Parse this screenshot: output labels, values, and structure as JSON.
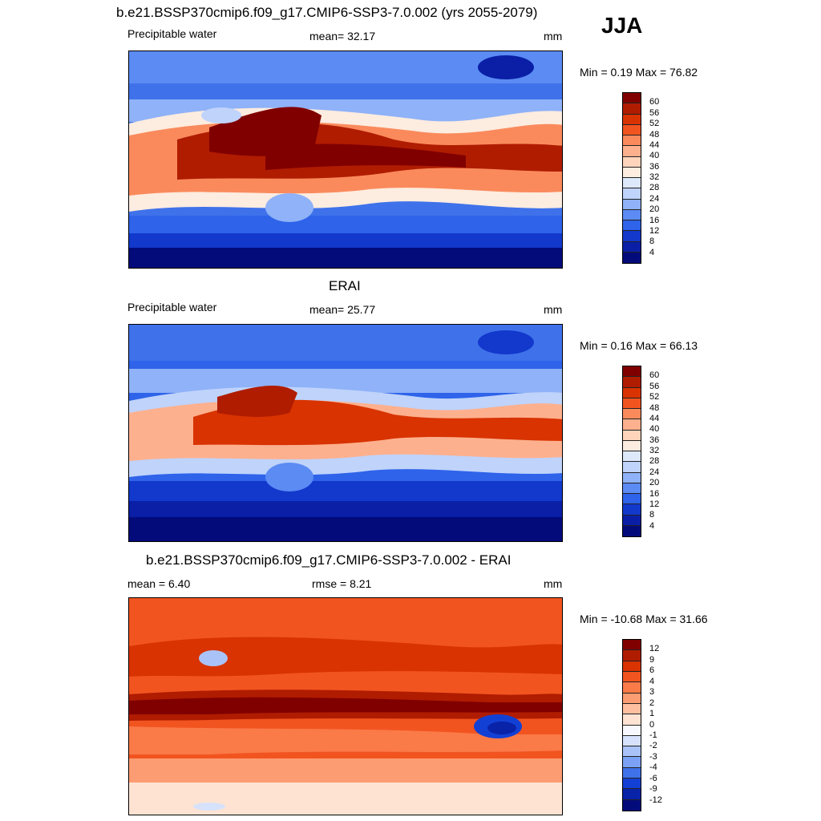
{
  "season": "JJA",
  "panels": [
    {
      "title": "b.e21.BSSP370cmip6.f09_g17.CMIP6-SSP3-7.0.002 (yrs 2055-2079)",
      "left_label": "Precipitable water",
      "center_label": "mean=  32.17",
      "right_label": "mm",
      "minmax": "Min =   0.19 Max =  76.82",
      "colorbar": [
        "60",
        "56",
        "52",
        "48",
        "44",
        "40",
        "36",
        "32",
        "28",
        "24",
        "20",
        "16",
        "12",
        "8",
        "4"
      ],
      "colors": [
        "#800000",
        "#b01c00",
        "#d83300",
        "#f25420",
        "#fa8a5c",
        "#fdb08e",
        "#fed4bb",
        "#fdece0",
        "#dde8fb",
        "#bfd3fb",
        "#8fb2f8",
        "#5b8bf3",
        "#2e63ea",
        "#1238cc",
        "#0a1fa6",
        "#030b7a"
      ]
    },
    {
      "title": "ERAI",
      "left_label": "Precipitable water",
      "center_label": "mean=  25.77",
      "right_label": "mm",
      "minmax": "Min =   0.16 Max =  66.13",
      "colorbar": [
        "60",
        "56",
        "52",
        "48",
        "44",
        "40",
        "36",
        "32",
        "28",
        "24",
        "20",
        "16",
        "12",
        "8",
        "4"
      ],
      "colors": [
        "#800000",
        "#b01c00",
        "#d83300",
        "#f25420",
        "#fa8a5c",
        "#fdb08e",
        "#fed4bb",
        "#fdece0",
        "#dde8fb",
        "#bfd3fb",
        "#8fb2f8",
        "#5b8bf3",
        "#2e63ea",
        "#1238cc",
        "#0a1fa6",
        "#030b7a"
      ]
    },
    {
      "title": "b.e21.BSSP370cmip6.f09_g17.CMIP6-SSP3-7.0.002 - ERAI",
      "left_label": "mean =   6.40",
      "center_label": "rmse =   8.21",
      "right_label": "mm",
      "minmax": "Min = -10.68 Max =  31.66",
      "colorbar": [
        "12",
        "9",
        "6",
        "4",
        "3",
        "2",
        "1",
        "0",
        "-1",
        "-2",
        "-3",
        "-4",
        "-6",
        "-9",
        "-12"
      ],
      "colors": [
        "#800000",
        "#b01c00",
        "#d83300",
        "#f25420",
        "#fa7a48",
        "#fc9c72",
        "#fdbf9f",
        "#fee3d3",
        "#f6f8fe",
        "#d6e2fb",
        "#a9c3f8",
        "#7aa1f3",
        "#3f72ea",
        "#1340d4",
        "#0822a8",
        "#030b7a"
      ]
    }
  ]
}
